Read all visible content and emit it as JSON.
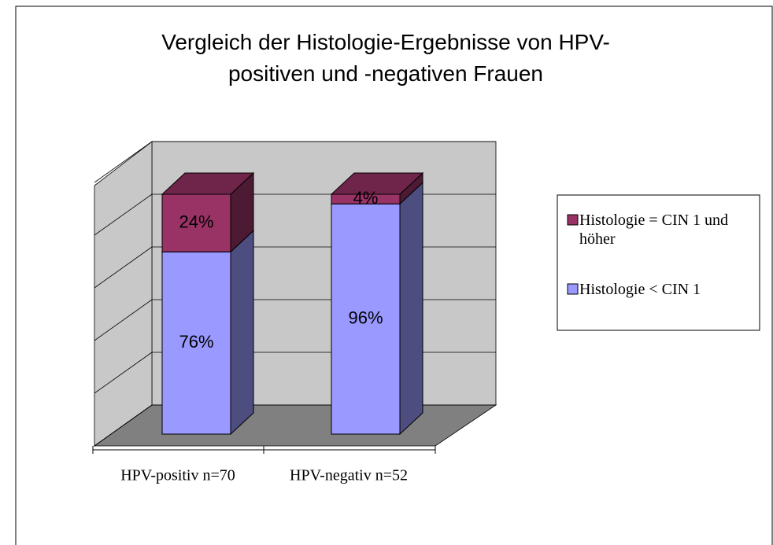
{
  "chart_data": {
    "type": "bar3d_stacked",
    "title": "Vergleich der Histologie-Ergebnisse von HPV-positiven und -negativen Frauen",
    "categories": [
      "HPV-positiv n=70",
      "HPV-negativ n=52"
    ],
    "series": [
      {
        "name": "Histologie < CIN 1",
        "color": "#9999ff",
        "values": [
          76,
          96
        ],
        "value_labels": [
          "76%",
          "96%"
        ]
      },
      {
        "name": "Histologie = CIN 1 und höher",
        "color": "#993366",
        "values": [
          24,
          4
        ],
        "value_labels": [
          "24%",
          "4%"
        ]
      }
    ],
    "ylim": [
      0,
      100
    ],
    "yticks": [
      0,
      20,
      40,
      60,
      80,
      100
    ],
    "grid": true,
    "legend": "right"
  }
}
